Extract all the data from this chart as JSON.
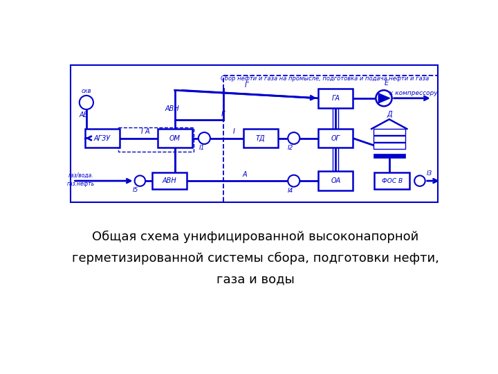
{
  "title_line1": "Общая схема унифицированной высоконапорной",
  "title_line2": "герметизированной системы сбора, подготовки нефти,",
  "title_line3": "газа и воды",
  "top_label": "Сбор нефти и газа на промысле, подготовка и подача нефти и газа",
  "kompressor_label": "к компрессору",
  "bg_color": "#ffffff",
  "blue": "#0000cd"
}
